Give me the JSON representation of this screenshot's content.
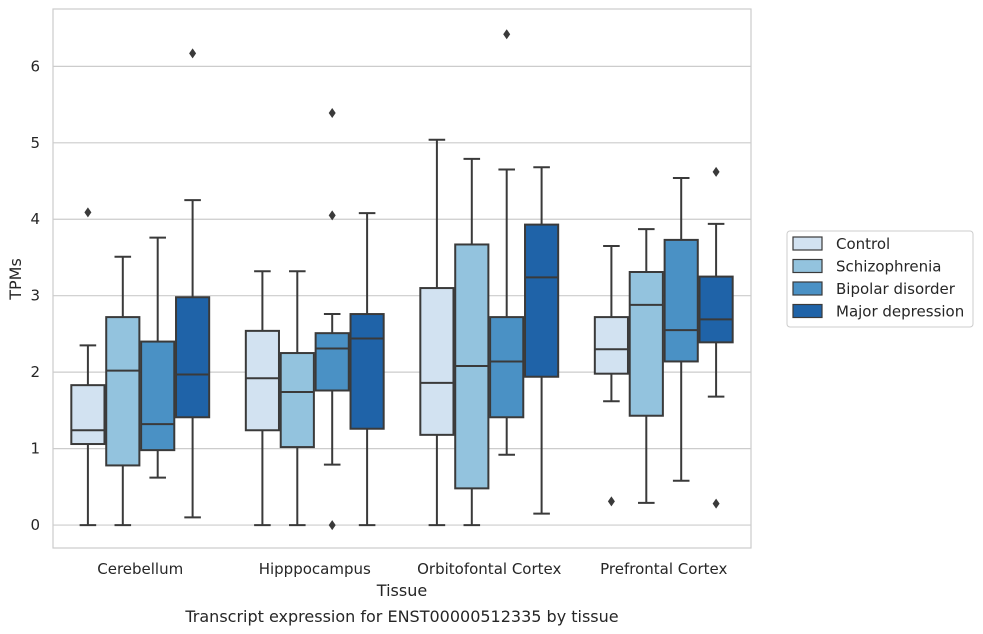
{
  "caption": "Transcript expression for ENST00000512335 by tissue",
  "colors": {
    "Control": "#d2e2f1",
    "Schizophrenia": "#93c3de",
    "Bipolar disorder": "#4a91c5",
    "Major depression": "#1f63a8",
    "line": "#3a3a3a",
    "grid": "#cccccc",
    "frame": "#cccccc"
  },
  "chart_data": {
    "type": "box",
    "title": "",
    "xlabel": "Tissue",
    "ylabel": "TPMs",
    "ylim": [
      -0.3,
      6.75
    ],
    "yticks": [
      0,
      1,
      2,
      3,
      4,
      5,
      6
    ],
    "grid": "horizontal",
    "legend_position": "right",
    "categories": [
      "Cerebellum",
      "Hipppocampus",
      "Orbitofontal Cortex",
      "Prefrontal Cortex"
    ],
    "series": [
      {
        "name": "Control",
        "boxes": [
          {
            "whislo": 0.0,
            "q1": 1.06,
            "med": 1.24,
            "q3": 1.83,
            "whishi": 2.35,
            "fliers": [
              4.09
            ]
          },
          {
            "whislo": 0.0,
            "q1": 1.24,
            "med": 1.92,
            "q3": 2.54,
            "whishi": 3.32,
            "fliers": []
          },
          {
            "whislo": 0.0,
            "q1": 1.18,
            "med": 1.86,
            "q3": 3.1,
            "whishi": 5.04,
            "fliers": []
          },
          {
            "whislo": 1.62,
            "q1": 1.98,
            "med": 2.3,
            "q3": 2.72,
            "whishi": 3.65,
            "fliers": [
              0.31
            ]
          }
        ]
      },
      {
        "name": "Schizophrenia",
        "boxes": [
          {
            "whislo": 0.0,
            "q1": 0.78,
            "med": 2.02,
            "q3": 2.72,
            "whishi": 3.51,
            "fliers": []
          },
          {
            "whislo": 0.0,
            "q1": 1.02,
            "med": 1.74,
            "q3": 2.25,
            "whishi": 3.32,
            "fliers": []
          },
          {
            "whislo": 0.0,
            "q1": 0.48,
            "med": 2.08,
            "q3": 3.67,
            "whishi": 4.79,
            "fliers": []
          },
          {
            "whislo": 0.29,
            "q1": 1.43,
            "med": 2.88,
            "q3": 3.31,
            "whishi": 3.87,
            "fliers": []
          }
        ]
      },
      {
        "name": "Bipolar disorder",
        "boxes": [
          {
            "whislo": 0.62,
            "q1": 0.98,
            "med": 1.32,
            "q3": 2.4,
            "whishi": 3.76,
            "fliers": []
          },
          {
            "whislo": 0.79,
            "q1": 1.76,
            "med": 2.31,
            "q3": 2.51,
            "whishi": 2.76,
            "fliers": [
              5.39,
              4.05,
              0.0
            ]
          },
          {
            "whislo": 0.92,
            "q1": 1.41,
            "med": 2.14,
            "q3": 2.72,
            "whishi": 4.65,
            "fliers": [
              6.42
            ]
          },
          {
            "whislo": 0.58,
            "q1": 2.14,
            "med": 2.55,
            "q3": 3.73,
            "whishi": 4.54,
            "fliers": []
          }
        ]
      },
      {
        "name": "Major depression",
        "boxes": [
          {
            "whislo": 0.1,
            "q1": 1.41,
            "med": 1.97,
            "q3": 2.98,
            "whishi": 4.25,
            "fliers": [
              6.17
            ]
          },
          {
            "whislo": 0.0,
            "q1": 1.26,
            "med": 2.44,
            "q3": 2.76,
            "whishi": 4.08,
            "fliers": []
          },
          {
            "whislo": 0.15,
            "q1": 1.94,
            "med": 3.24,
            "q3": 3.93,
            "whishi": 4.68,
            "fliers": []
          },
          {
            "whislo": 1.68,
            "q1": 2.39,
            "med": 2.69,
            "q3": 3.25,
            "whishi": 3.94,
            "fliers": [
              4.62,
              0.28
            ]
          }
        ]
      }
    ]
  }
}
